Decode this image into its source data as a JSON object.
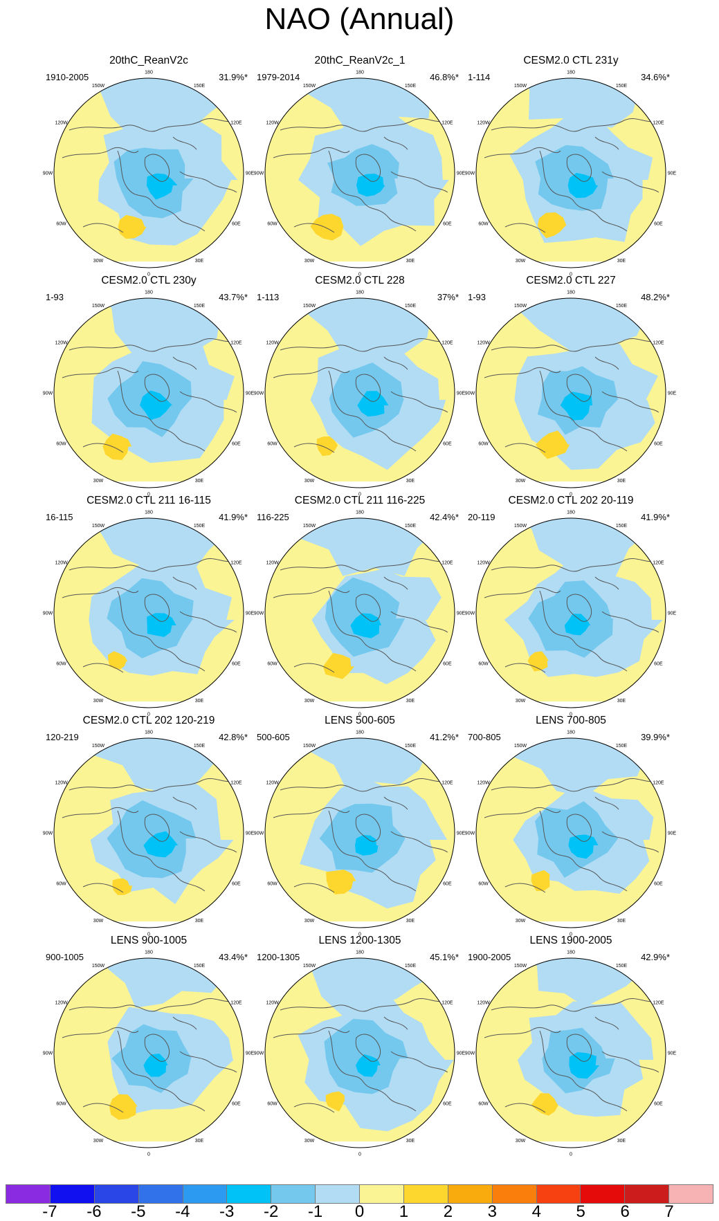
{
  "figure": {
    "title": "NAO (Annual)",
    "panels": [
      {
        "name": "20thC_ReanV2c",
        "period": "1910-2005",
        "variance": "31.9%*"
      },
      {
        "name": "20thC_ReanV2c_1",
        "period": "1979-2014",
        "variance": "46.8%*"
      },
      {
        "name": "CESM2.0 CTL 231y",
        "period": "1-114",
        "variance": "34.6%*"
      },
      {
        "name": "CESM2.0 CTL 230y",
        "period": "1-93",
        "variance": "43.7%*"
      },
      {
        "name": "CESM2.0 CTL 228",
        "period": "1-113",
        "variance": "37%*"
      },
      {
        "name": "CESM2.0 CTL 227",
        "period": "1-93",
        "variance": "48.2%*"
      },
      {
        "name": "CESM2.0 CTL 211 16-115",
        "period": "16-115",
        "variance": "41.9%*"
      },
      {
        "name": "CESM2.0 CTL 211 116-225",
        "period": "116-225",
        "variance": "42.4%*"
      },
      {
        "name": "CESM2.0 CTL 202 20-119",
        "period": "20-119",
        "variance": "41.9%*"
      },
      {
        "name": "CESM2.0 CTL 202 120-219",
        "period": "120-219",
        "variance": "42.8%*"
      },
      {
        "name": "LENS 500-605",
        "period": "500-605",
        "variance": "41.2%*"
      },
      {
        "name": "LENS 700-805",
        "period": "700-805",
        "variance": "39.9%*"
      },
      {
        "name": "LENS 900-1005",
        "period": "900-1005",
        "variance": "43.4%*"
      },
      {
        "name": "LENS 1200-1305",
        "period": "1200-1305",
        "variance": "45.1%*"
      },
      {
        "name": "LENS 1900-2005",
        "period": "1900-2005",
        "variance": "42.9%*"
      }
    ],
    "longitude_labels": [
      "180",
      "150E",
      "120E",
      "90E",
      "60E",
      "30E",
      "0",
      "30W",
      "60W",
      "90W",
      "120W",
      "150W"
    ],
    "colorbar": {
      "colors": [
        "#8a2be2",
        "#1010f0",
        "#2a46e6",
        "#3172ea",
        "#2b9af0",
        "#00c2f7",
        "#74c8ee",
        "#b1dcf4",
        "#fbf494",
        "#fdd62e",
        "#f9ab0e",
        "#f97e0c",
        "#f84110",
        "#e60b0b",
        "#cc1c1c",
        "#f7b2b4"
      ],
      "labels": [
        "-7",
        "-6",
        "-5",
        "-4",
        "-3",
        "-2",
        "-1",
        "0",
        "1",
        "2",
        "3",
        "4",
        "5",
        "6",
        "7"
      ]
    },
    "palette": {
      "positive_weak": "#fbf494",
      "negative_weak": "#b1dcf4",
      "negative_mid": "#74c8ee",
      "negative_strong": "#00c2f7",
      "positive_mid": "#fdd62e",
      "coast": "#555555"
    }
  }
}
